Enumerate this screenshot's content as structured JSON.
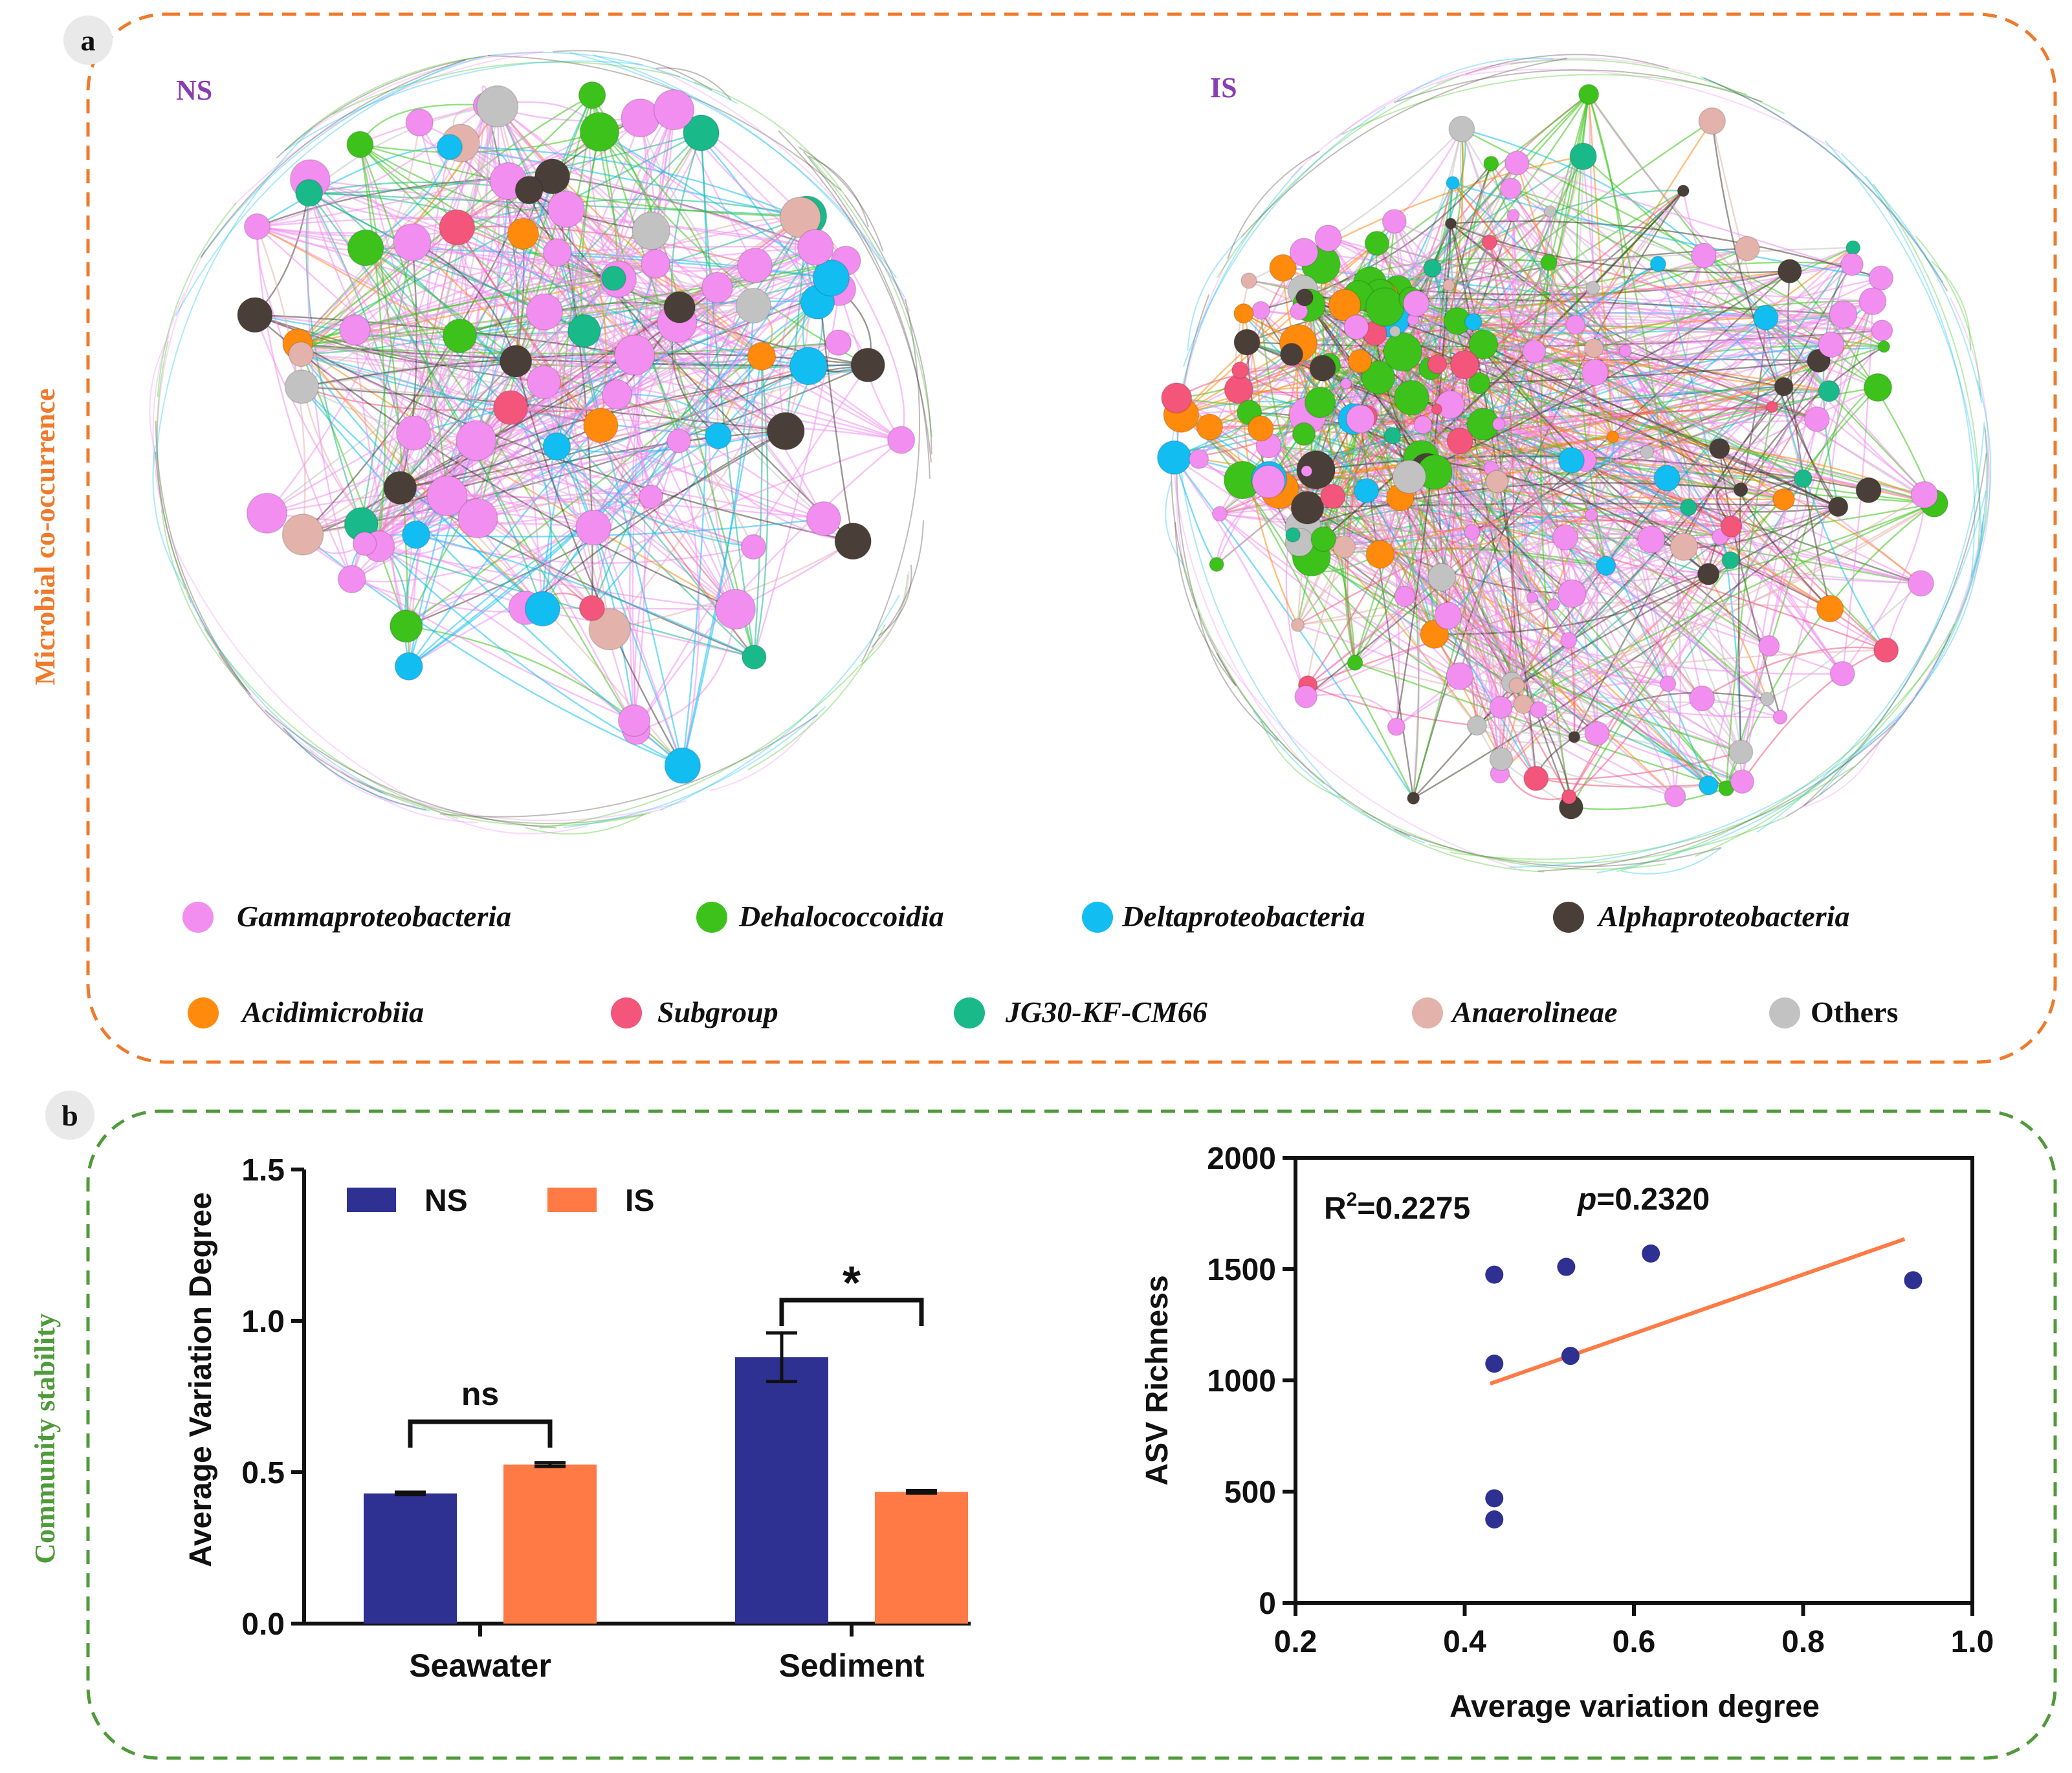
{
  "colors": {
    "gamma": "#f28ef0",
    "dehalo": "#3cc21a",
    "delta": "#12bdf2",
    "alpha": "#4a3f38",
    "acid": "#ff8a0c",
    "subgroup": "#f4557a",
    "jg30": "#19b98a",
    "anaero": "#e2b2ab",
    "others": "#c2c2c2",
    "panel_a_border": "#ef7a2b",
    "panel_b_border": "#4f9a3a",
    "ns_bar": "#2e3192",
    "is_bar": "#ff7a45",
    "scatter_point": "#2e3192",
    "fit_line": "#ff7a45",
    "network_label": "#8a3db5"
  },
  "panel_a": {
    "letter": "a",
    "side_title": "Microbial co-occurrence",
    "network_ns_label": "NS",
    "network_is_label": "IS",
    "legend": [
      {
        "key": "gamma",
        "label": "Gammaproteobacteria"
      },
      {
        "key": "dehalo",
        "label": "Dehalococcoidia"
      },
      {
        "key": "delta",
        "label": "Deltaproteobacteria"
      },
      {
        "key": "alpha",
        "label": "Alphaproteobacteria"
      },
      {
        "key": "acid",
        "label": "Acidimicrobiia"
      },
      {
        "key": "subgroup",
        "label": "Subgroup"
      },
      {
        "key": "jg30",
        "label": "JG30-KF-CM66"
      },
      {
        "key": "anaero",
        "label": "Anaerolineae"
      },
      {
        "key": "others",
        "label": "Others"
      }
    ]
  },
  "panel_b": {
    "letter": "b",
    "side_title": "Community stability"
  },
  "chart_data": [
    {
      "type": "bar",
      "categories": [
        "Seawater",
        "Sediment"
      ],
      "series": [
        {
          "name": "NS",
          "values": [
            0.43,
            0.88
          ],
          "errors": [
            0.004,
            0.08
          ]
        },
        {
          "name": "IS",
          "values": [
            0.525,
            0.435
          ],
          "errors": [
            0.006,
            0.004
          ]
        }
      ],
      "ylabel": "Average Variation Degree",
      "ylim": [
        0,
        1.5
      ],
      "yticks": [
        "0.0",
        "0.5",
        "1.0",
        "1.5"
      ],
      "significance": [
        {
          "category": "Seawater",
          "label": "ns"
        },
        {
          "category": "Sediment",
          "label": "*"
        }
      ],
      "legend_position": "top-left"
    },
    {
      "type": "scatter",
      "x": [
        0.435,
        0.435,
        0.435,
        0.435,
        0.52,
        0.525,
        0.62,
        0.93
      ],
      "y": [
        1475,
        1075,
        470,
        375,
        1510,
        1110,
        1570,
        1450
      ],
      "fit": {
        "x": [
          0.43,
          0.92
        ],
        "y": [
          985,
          1635
        ]
      },
      "xlabel": "Average variation degree",
      "ylabel": "ASV Richness",
      "xlim": [
        0.2,
        1.0
      ],
      "ylim": [
        0,
        2000
      ],
      "xticks": [
        "0.2",
        "0.4",
        "0.6",
        "0.8",
        "1.0"
      ],
      "yticks": [
        "0",
        "500",
        "1000",
        "1500",
        "2000"
      ],
      "r2_prefix": "R",
      "r2_sup": "2",
      "r2_value": "=0.2275",
      "p_prefix": "p",
      "p_value": "=0.2320"
    }
  ]
}
